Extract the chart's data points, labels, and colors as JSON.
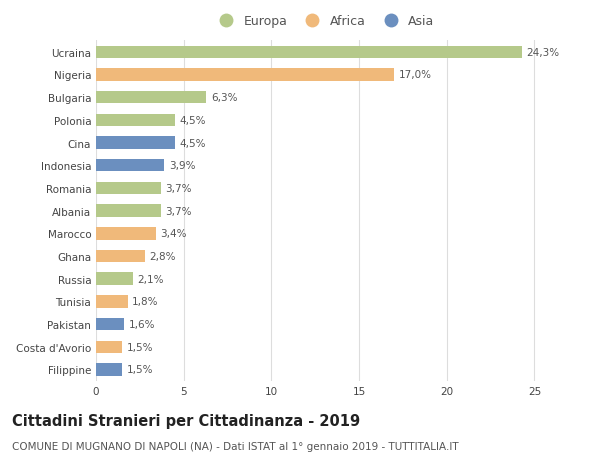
{
  "categories": [
    "Filippine",
    "Costa d'Avorio",
    "Pakistan",
    "Tunisia",
    "Russia",
    "Ghana",
    "Marocco",
    "Albania",
    "Romania",
    "Indonesia",
    "Cina",
    "Polonia",
    "Bulgaria",
    "Nigeria",
    "Ucraina"
  ],
  "values": [
    1.5,
    1.5,
    1.6,
    1.8,
    2.1,
    2.8,
    3.4,
    3.7,
    3.7,
    3.9,
    4.5,
    4.5,
    6.3,
    17.0,
    24.3
  ],
  "labels": [
    "1,5%",
    "1,5%",
    "1,6%",
    "1,8%",
    "2,1%",
    "2,8%",
    "3,4%",
    "3,7%",
    "3,7%",
    "3,9%",
    "4,5%",
    "4,5%",
    "6,3%",
    "17,0%",
    "24,3%"
  ],
  "continents": [
    "Asia",
    "Africa",
    "Asia",
    "Africa",
    "Europa",
    "Africa",
    "Africa",
    "Europa",
    "Europa",
    "Asia",
    "Asia",
    "Europa",
    "Europa",
    "Africa",
    "Europa"
  ],
  "colors": {
    "Europa": "#b5c98a",
    "Africa": "#f0b97a",
    "Asia": "#6b8fbf"
  },
  "legend_labels": [
    "Europa",
    "Africa",
    "Asia"
  ],
  "title": "Cittadini Stranieri per Cittadinanza - 2019",
  "subtitle": "COMUNE DI MUGNANO DI NAPOLI (NA) - Dati ISTAT al 1° gennaio 2019 - TUTTITALIA.IT",
  "xlim": [
    0,
    26
  ],
  "xticks": [
    0,
    5,
    10,
    15,
    20,
    25
  ],
  "background_color": "#ffffff",
  "grid_color": "#dddddd",
  "bar_height": 0.55,
  "title_fontsize": 10.5,
  "subtitle_fontsize": 7.5,
  "label_fontsize": 7.5,
  "tick_fontsize": 7.5,
  "legend_fontsize": 9
}
